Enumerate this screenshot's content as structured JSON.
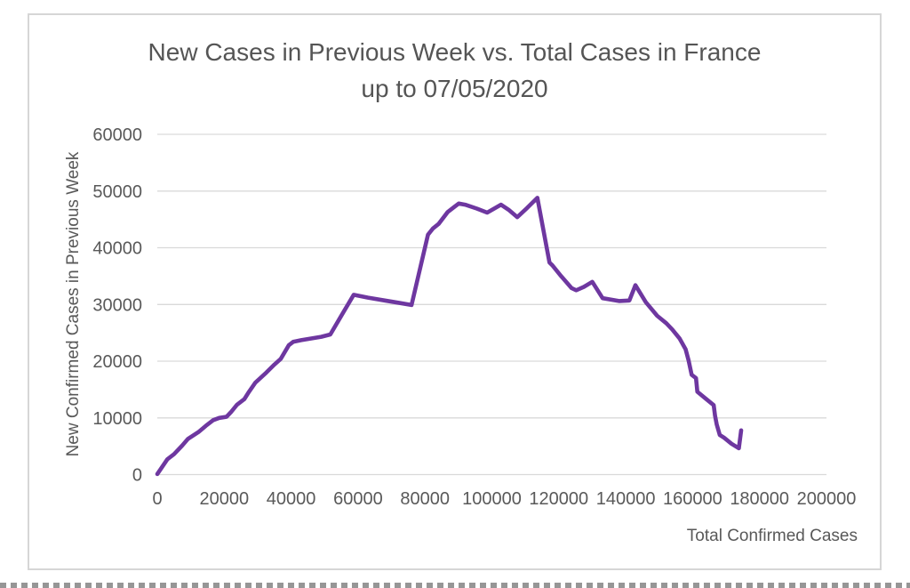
{
  "chart_data": {
    "type": "line",
    "title": "New Cases in Previous Week vs. Total Cases in France up to 07/05/2020",
    "title_lines": [
      "New Cases in Previous Week vs. Total Cases in France",
      "up to 07/05/2020"
    ],
    "xlabel": "Total Confirmed Cases",
    "ylabel": "New Confirmed Cases in Previous Week",
    "xlim": [
      0,
      200000
    ],
    "ylim": [
      0,
      60000
    ],
    "x_ticks": [
      0,
      20000,
      40000,
      60000,
      80000,
      100000,
      120000,
      140000,
      160000,
      180000,
      200000
    ],
    "y_ticks": [
      0,
      10000,
      20000,
      30000,
      40000,
      50000,
      60000
    ],
    "grid": "horizontal-only",
    "legend": "none",
    "series": [
      {
        "points": [
          [
            0,
            100
          ],
          [
            3000,
            2700
          ],
          [
            5000,
            3600
          ],
          [
            7400,
            5100
          ],
          [
            9200,
            6300
          ],
          [
            12300,
            7500
          ],
          [
            14500,
            8600
          ],
          [
            16700,
            9600
          ],
          [
            18500,
            10000
          ],
          [
            20700,
            10200
          ],
          [
            22000,
            11000
          ],
          [
            23800,
            12300
          ],
          [
            26000,
            13300
          ],
          [
            27400,
            14600
          ],
          [
            29300,
            16200
          ],
          [
            32600,
            18000
          ],
          [
            35000,
            19400
          ],
          [
            36900,
            20400
          ],
          [
            39300,
            22800
          ],
          [
            40600,
            23400
          ],
          [
            43000,
            23700
          ],
          [
            46000,
            24000
          ],
          [
            49000,
            24300
          ],
          [
            51700,
            24700
          ],
          [
            55200,
            28200
          ],
          [
            58700,
            31700
          ],
          [
            63000,
            31200
          ],
          [
            68000,
            30700
          ],
          [
            72000,
            30300
          ],
          [
            76000,
            29900
          ],
          [
            80900,
            42300
          ],
          [
            82400,
            43400
          ],
          [
            84100,
            44200
          ],
          [
            86800,
            46300
          ],
          [
            90100,
            47800
          ],
          [
            92000,
            47600
          ],
          [
            95500,
            46900
          ],
          [
            98600,
            46200
          ],
          [
            102700,
            47600
          ],
          [
            105000,
            46700
          ],
          [
            107600,
            45400
          ],
          [
            110500,
            47000
          ],
          [
            113600,
            48800
          ],
          [
            117200,
            37400
          ],
          [
            118100,
            36900
          ],
          [
            120700,
            35000
          ],
          [
            123800,
            32900
          ],
          [
            125200,
            32500
          ],
          [
            127500,
            33100
          ],
          [
            130000,
            34000
          ],
          [
            133100,
            31100
          ],
          [
            138000,
            30600
          ],
          [
            141100,
            30700
          ],
          [
            142900,
            33400
          ],
          [
            146000,
            30400
          ],
          [
            149400,
            28000
          ],
          [
            152100,
            26700
          ],
          [
            153900,
            25600
          ],
          [
            156100,
            24000
          ],
          [
            157900,
            22100
          ],
          [
            158800,
            20100
          ],
          [
            159700,
            17600
          ],
          [
            161000,
            17000
          ],
          [
            161400,
            14600
          ],
          [
            164100,
            13300
          ],
          [
            166300,
            12250
          ],
          [
            166700,
            10400
          ],
          [
            167200,
            8850
          ],
          [
            168100,
            7000
          ],
          [
            169400,
            6500
          ],
          [
            171600,
            5450
          ],
          [
            173800,
            4650
          ],
          [
            174500,
            7800
          ]
        ]
      }
    ]
  },
  "colors": {
    "line": "#6e37a0",
    "gridline": "#d9d9d9",
    "axis_text": "#595959",
    "title_text": "#555555",
    "frame_border": "#d6d6d6",
    "background": "#ffffff"
  }
}
